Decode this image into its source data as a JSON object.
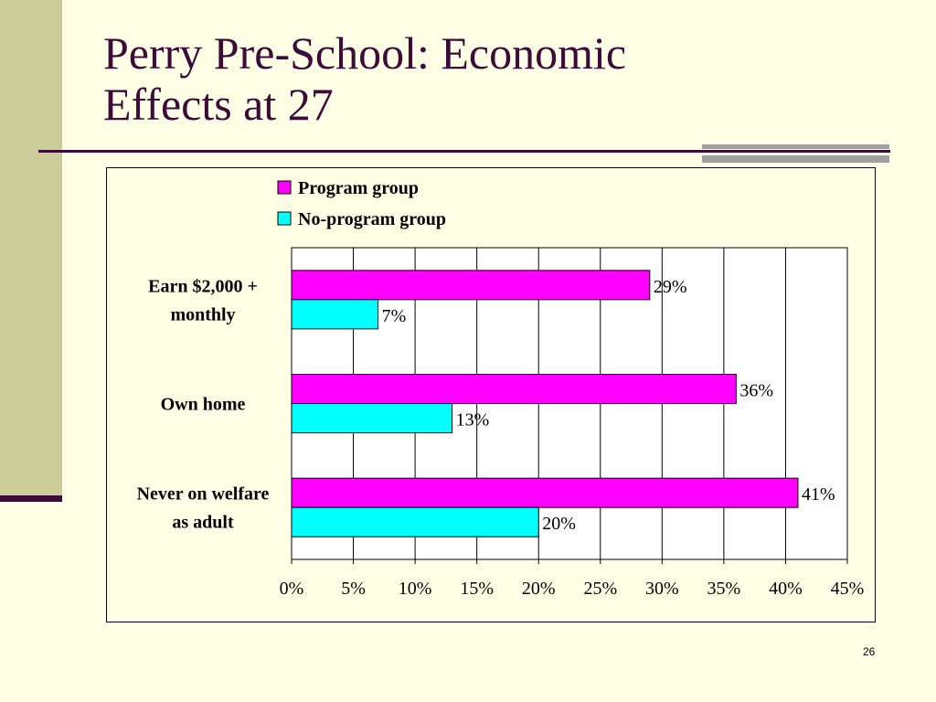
{
  "slide": {
    "title_line1": "Perry Pre-School: Economic",
    "title_line2": "Effects at 27",
    "page_number": "26"
  },
  "chart_data": {
    "type": "bar",
    "orientation": "horizontal",
    "categories": [
      [
        "Earn $2,000 +",
        "monthly"
      ],
      [
        "Own home"
      ],
      [
        "Never on welfare",
        "as adult"
      ]
    ],
    "series": [
      {
        "name": "Program group",
        "values": [
          29,
          36,
          41
        ],
        "labels": [
          "29%",
          "36%",
          "41%"
        ],
        "color": "#FF00FF"
      },
      {
        "name": "No-program group",
        "values": [
          7,
          13,
          20
        ],
        "labels": [
          "7%",
          "13%",
          "20%"
        ],
        "color": "#00FFFF"
      }
    ],
    "x_ticks": [
      "0%",
      "5%",
      "10%",
      "15%",
      "20%",
      "25%",
      "30%",
      "35%",
      "40%",
      "45%"
    ],
    "xlim": [
      0,
      45
    ],
    "grid": "vertical",
    "legend_position": "top",
    "plot_background": "#FFFFFF",
    "title": "",
    "xlabel": "",
    "ylabel": ""
  }
}
